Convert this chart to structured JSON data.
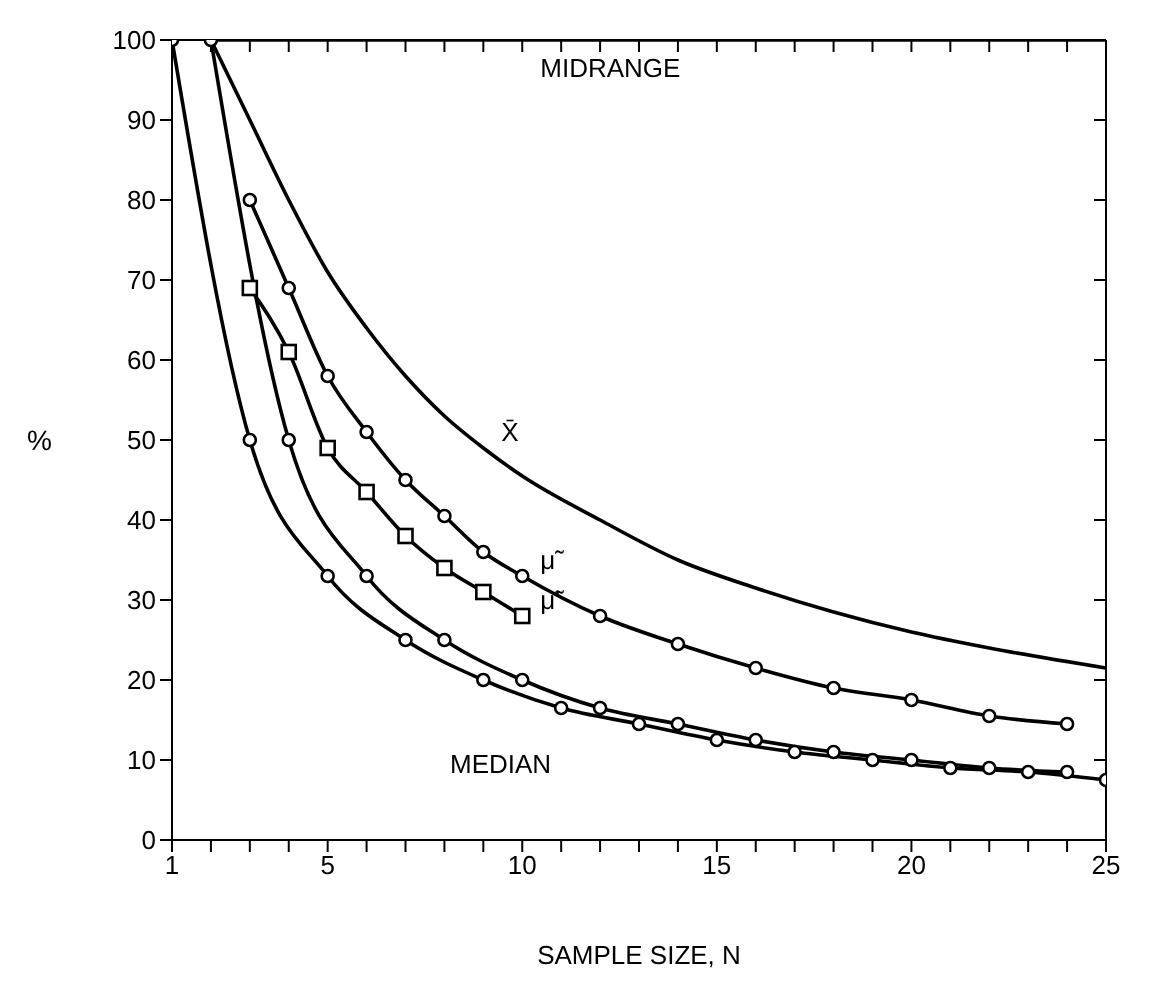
{
  "chart_data": {
    "type": "line",
    "xlabel": "SAMPLE SIZE, N",
    "ylabel": "%",
    "xlim": [
      1,
      25
    ],
    "ylim": [
      0,
      100
    ],
    "xticks": [
      1,
      {
        "value": 2,
        "label": null
      },
      {
        "value": 3,
        "label": null
      },
      {
        "value": 4,
        "label": null
      },
      5,
      {
        "value": 6,
        "label": null
      },
      {
        "value": 7,
        "label": null
      },
      {
        "value": 8,
        "label": null
      },
      {
        "value": 9,
        "label": null
      },
      10,
      {
        "value": 11,
        "label": null
      },
      {
        "value": 12,
        "label": null
      },
      {
        "value": 13,
        "label": null
      },
      {
        "value": 14,
        "label": null
      },
      15,
      {
        "value": 16,
        "label": null
      },
      {
        "value": 17,
        "label": null
      },
      {
        "value": 18,
        "label": null
      },
      {
        "value": 19,
        "label": null
      },
      20,
      {
        "value": 21,
        "label": null
      },
      {
        "value": 22,
        "label": null
      },
      {
        "value": 23,
        "label": null
      },
      {
        "value": 24,
        "label": null
      },
      25
    ],
    "yticks": [
      0,
      10,
      20,
      30,
      40,
      50,
      60,
      70,
      80,
      90,
      100
    ],
    "grid": false,
    "line_style": "solid",
    "series": [
      {
        "color": "#000000",
        "x": [
          2,
          25
        ],
        "values": [
          100,
          100
        ]
      },
      {
        "color": "#000000",
        "marker": "none",
        "x": [
          2,
          3,
          4,
          5,
          6,
          7,
          8,
          9,
          10,
          12,
          14,
          16,
          18,
          20,
          22,
          25
        ],
        "values": [
          100,
          90,
          80,
          71,
          64,
          58,
          53,
          49,
          45.5,
          40,
          35,
          31.5,
          28.5,
          26,
          24,
          21.5
        ]
      },
      {
        "color": "#000000",
        "marker": "circle",
        "x": [
          3,
          4,
          5,
          6,
          7,
          8,
          9,
          10,
          12,
          14,
          16,
          18,
          20,
          22,
          24
        ],
        "values": [
          80,
          69,
          58,
          51,
          45,
          40.5,
          36,
          33,
          28,
          24.5,
          21.5,
          19,
          17.5,
          15.5,
          14.5
        ]
      },
      {
        "color": "#000000",
        "marker": "square",
        "x": [
          3,
          4,
          5,
          6,
          7,
          8,
          9,
          10
        ],
        "values": [
          69,
          61,
          49,
          43.5,
          38,
          34,
          31,
          28
        ]
      },
      {
        "color": "#000000",
        "marker": "circle",
        "x": [
          1,
          3,
          5,
          7,
          9,
          11,
          13,
          15,
          17,
          19,
          21,
          23,
          25
        ],
        "values": [
          100,
          50,
          33,
          25,
          20,
          16.5,
          14.5,
          12.5,
          11,
          10,
          9,
          8.5,
          7.5
        ]
      },
      {
        "color": "#000000",
        "marker": "circle",
        "x": [
          2,
          4,
          6,
          8,
          10,
          12,
          14,
          16,
          18,
          20,
          22,
          24
        ],
        "values": [
          100,
          50,
          33,
          25,
          20,
          16.5,
          14.5,
          12.5,
          11,
          10,
          9,
          8.5
        ]
      }
    ],
    "annotations": [
      {
        "text": "MIDRANGE",
        "x": 10,
        "y": 100
      },
      {
        "text": "X̄",
        "x": 9,
        "y": 49
      },
      {
        "text": "μ̃",
        "x": 10,
        "y": 33
      },
      {
        "text": "μ̃'",
        "x": 10,
        "y": 28
      },
      {
        "text": "MEDIAN",
        "x": 11,
        "y": 16.5
      }
    ]
  }
}
